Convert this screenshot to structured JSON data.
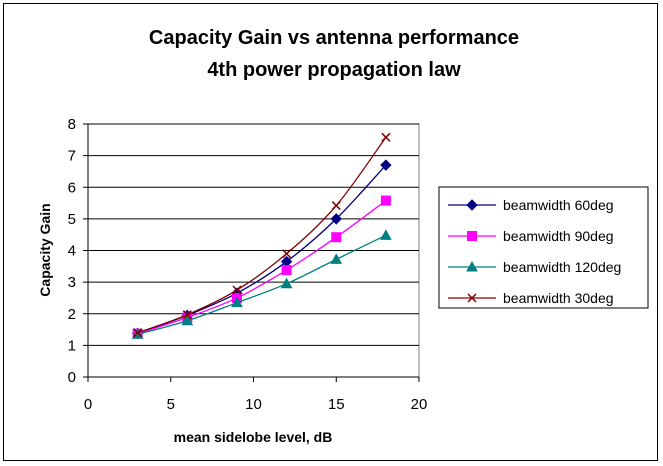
{
  "chart_data": {
    "type": "line",
    "title": [
      "Capacity Gain vs antenna performance",
      "4th power propagation law"
    ],
    "xlabel": "mean sidelobe level, dB",
    "ylabel": "Capacity Gain",
    "xlim": [
      0,
      20
    ],
    "ylim": [
      0,
      8
    ],
    "xticks": [
      0,
      5,
      10,
      15,
      20
    ],
    "yticks": [
      0,
      1,
      2,
      3,
      4,
      5,
      6,
      7,
      8
    ],
    "grid": "horizontal",
    "legend_position": "right",
    "x": [
      3,
      6,
      9,
      12,
      15,
      18
    ],
    "series": [
      {
        "name": "beamwidth 60deg",
        "color": "#000080",
        "marker": "diamond",
        "values": [
          1.38,
          1.95,
          2.65,
          3.65,
          5.0,
          6.7
        ]
      },
      {
        "name": "beamwidth 90deg",
        "color": "#FF00FF",
        "marker": "square",
        "values": [
          1.37,
          1.88,
          2.5,
          3.38,
          4.42,
          5.58
        ]
      },
      {
        "name": "beamwidth 120deg",
        "color": "#008080",
        "marker": "triangle",
        "values": [
          1.35,
          1.78,
          2.35,
          2.95,
          3.72,
          4.48
        ]
      },
      {
        "name": "beamwidth 30deg",
        "color": "#800000",
        "marker": "x",
        "values": [
          1.4,
          1.97,
          2.75,
          3.9,
          5.42,
          7.58
        ]
      }
    ]
  }
}
